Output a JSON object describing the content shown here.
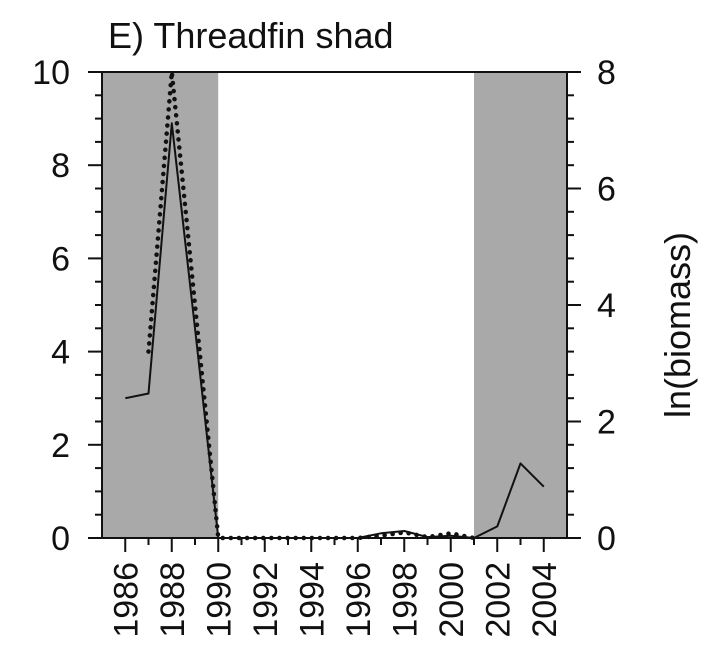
{
  "chart_data": {
    "type": "line",
    "title": "E) Threadfin shad",
    "xlabel": "",
    "ylabel": "",
    "y2label": "ln(biomass)",
    "x_ticks": [
      "1986",
      "1988",
      "1990",
      "1992",
      "1994",
      "1996",
      "1998",
      "2000",
      "2002",
      "2004"
    ],
    "xlim": [
      1985,
      2005
    ],
    "ylim": [
      0,
      10
    ],
    "y2lim": [
      0,
      8
    ],
    "y_ticks": [
      "0",
      "2",
      "4",
      "6",
      "8",
      "10"
    ],
    "y2_ticks": [
      "0",
      "2",
      "4",
      "6",
      "8"
    ],
    "shaded_ranges": [
      [
        1985,
        1990
      ],
      [
        2001,
        2005
      ]
    ],
    "shade_color": "#a9a9a9",
    "grid": false,
    "series": [
      {
        "style": "solid",
        "axis": "left",
        "color": "#111111",
        "x": [
          1986,
          1987,
          1988,
          1989,
          1990,
          1991,
          1992,
          1993,
          1994,
          1995,
          1996,
          1997,
          1998,
          1999,
          2000,
          2001,
          2002,
          2003,
          2004
        ],
        "y": [
          3.0,
          3.1,
          8.9,
          4.5,
          0.0,
          0.0,
          0.0,
          0.0,
          0.0,
          0.0,
          0.0,
          0.1,
          0.15,
          0.02,
          0.05,
          0.0,
          0.25,
          1.6,
          1.1
        ]
      },
      {
        "style": "dotted",
        "axis": "left",
        "color": "#111111",
        "x": [
          1987,
          1988,
          1989,
          1990,
          1991,
          1992,
          1993,
          1994,
          1995,
          1996,
          1997,
          1998,
          1999,
          2000,
          2001
        ],
        "y": [
          4.0,
          10.0,
          5.0,
          0.0,
          0.0,
          0.0,
          0.0,
          0.0,
          0.0,
          0.0,
          0.05,
          0.12,
          0.02,
          0.1,
          0.0
        ]
      }
    ]
  }
}
